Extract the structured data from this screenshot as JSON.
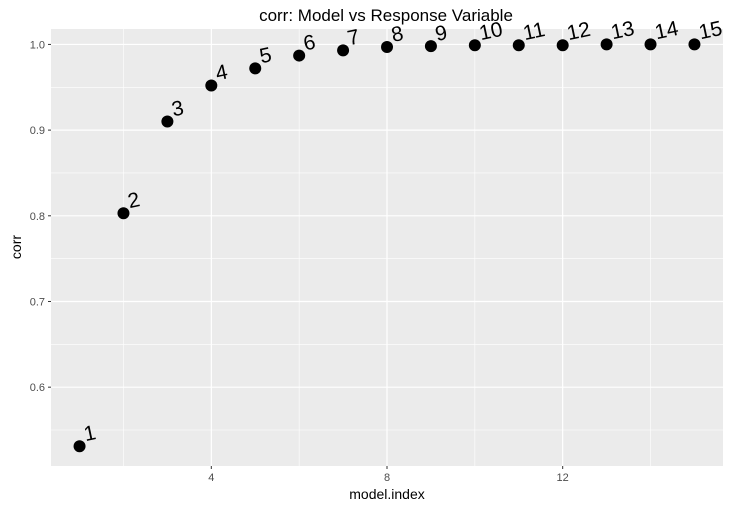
{
  "chart_data": {
    "type": "scatter",
    "title": "corr: Model vs Response Variable",
    "xlabel": "model.index",
    "ylabel": "corr",
    "xlim": [
      0.35,
      15.65
    ],
    "ylim": [
      0.508,
      1.018
    ],
    "x_ticks": [
      4,
      8,
      12
    ],
    "x_minor_ticks": [
      2,
      6,
      10,
      14
    ],
    "y_ticks": [
      0.6,
      0.7,
      0.8,
      0.9,
      1.0
    ],
    "y_tick_labels": [
      "0.6",
      "0.7",
      "0.8",
      "0.9",
      "1.0"
    ],
    "y_minor_ticks": [
      0.55,
      0.65,
      0.75,
      0.85,
      0.95
    ],
    "grid": true,
    "background": "#ebebeb",
    "grid_color": "#ffffff",
    "point_color": "#000000",
    "points": [
      {
        "x": 1,
        "y": 0.531,
        "label": "1"
      },
      {
        "x": 2,
        "y": 0.803,
        "label": "2"
      },
      {
        "x": 3,
        "y": 0.91,
        "label": "3"
      },
      {
        "x": 4,
        "y": 0.952,
        "label": "4"
      },
      {
        "x": 5,
        "y": 0.972,
        "label": "5"
      },
      {
        "x": 6,
        "y": 0.987,
        "label": "6"
      },
      {
        "x": 7,
        "y": 0.993,
        "label": "7"
      },
      {
        "x": 8,
        "y": 0.997,
        "label": "8"
      },
      {
        "x": 9,
        "y": 0.998,
        "label": "9"
      },
      {
        "x": 10,
        "y": 0.999,
        "label": "10"
      },
      {
        "x": 11,
        "y": 0.999,
        "label": "11"
      },
      {
        "x": 12,
        "y": 0.999,
        "label": "12"
      },
      {
        "x": 13,
        "y": 1.0,
        "label": "13"
      },
      {
        "x": 14,
        "y": 1.0,
        "label": "14"
      },
      {
        "x": 15,
        "y": 1.0,
        "label": "15"
      }
    ]
  }
}
